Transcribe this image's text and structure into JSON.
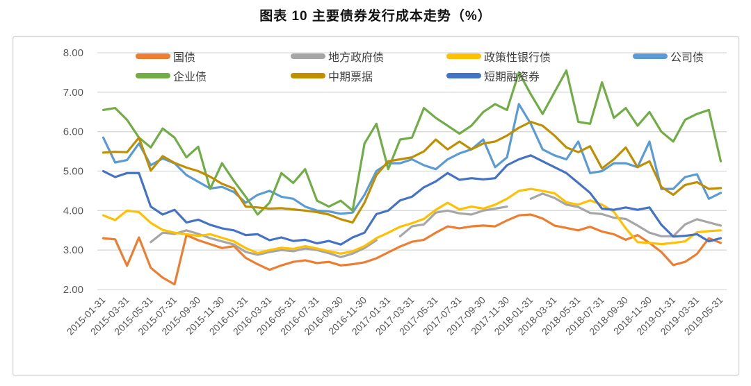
{
  "title": "图表 10 主要债券发行成本走势（%）",
  "chart_data": {
    "type": "line",
    "title": "图表 10 主要债券发行成本走势（%）",
    "ylim": [
      2.0,
      8.0
    ],
    "y_tick_labels": [
      "8.00",
      "7.00",
      "6.00",
      "5.00",
      "4.00",
      "3.00",
      "2.00"
    ],
    "grid": "horizontal-only",
    "legend_position": "top",
    "axis_label_color": "#595959",
    "gridline_color": "#d9d9d9",
    "x_note": "monthly points 2015-01 to 2019-05, tick labels every second month",
    "x_tick_labels": [
      "2015-01-31",
      "2015-03-31",
      "2015-05-31",
      "2015-07-31",
      "2015-09-30",
      "2015-11-30",
      "2016-01-31",
      "2016-03-31",
      "2016-05-31",
      "2016-07-31",
      "2016-09-30",
      "2016-11-30",
      "2017-01-31",
      "2017-03-31",
      "2017-05-31",
      "2017-07-31",
      "2017-09-30",
      "2017-11-30",
      "2018-01-31",
      "2018-03-31",
      "2018-05-31",
      "2018-07-31",
      "2018-09-30",
      "2018-11-30",
      "2019-01-31",
      "2019-03-31",
      "2019-05-31"
    ],
    "series": [
      {
        "id": "treasury-bond",
        "name": "国债",
        "color": "#ED7D31",
        "values": [
          3.3,
          3.27,
          2.6,
          3.32,
          2.55,
          2.3,
          2.13,
          3.38,
          3.25,
          3.15,
          3.05,
          3.1,
          2.8,
          2.64,
          2.5,
          2.61,
          2.7,
          2.74,
          2.67,
          2.7,
          2.61,
          2.64,
          2.69,
          2.79,
          2.94,
          3.09,
          3.21,
          3.26,
          3.44,
          3.6,
          3.55,
          3.6,
          3.62,
          3.6,
          3.75,
          3.88,
          3.9,
          3.8,
          3.62,
          3.56,
          3.5,
          3.59,
          3.47,
          3.4,
          3.26,
          3.38,
          3.18,
          2.95,
          2.62,
          2.7,
          2.9,
          3.3,
          3.18
        ]
      },
      {
        "id": "local-government-bond",
        "name": "地方政府债",
        "color": "#A6A6A6",
        "values": [
          null,
          null,
          null,
          null,
          3.2,
          3.44,
          3.41,
          3.5,
          3.41,
          3.3,
          3.22,
          3.14,
          2.95,
          2.88,
          2.95,
          3.0,
          2.97,
          3.04,
          3.0,
          2.92,
          2.82,
          2.91,
          3.05,
          3.25,
          null,
          3.35,
          3.6,
          3.65,
          3.95,
          4.0,
          3.93,
          3.9,
          4.0,
          4.05,
          4.1,
          null,
          4.3,
          4.43,
          4.32,
          4.15,
          4.09,
          3.94,
          3.91,
          3.82,
          3.79,
          3.62,
          3.44,
          3.35,
          3.35,
          3.65,
          3.78,
          3.7,
          3.62
        ]
      },
      {
        "id": "policy-bank-bond",
        "name": "政策性银行债",
        "color": "#FFC000",
        "values": [
          3.88,
          3.76,
          4.0,
          3.96,
          3.69,
          3.51,
          3.44,
          3.4,
          3.36,
          3.4,
          3.31,
          3.22,
          3.05,
          2.92,
          3.0,
          3.06,
          3.03,
          3.1,
          3.04,
          2.97,
          2.91,
          2.97,
          3.1,
          3.3,
          3.44,
          3.59,
          3.68,
          3.79,
          4.02,
          4.2,
          4.03,
          4.1,
          4.05,
          4.15,
          4.3,
          4.5,
          4.55,
          4.5,
          4.44,
          4.21,
          4.15,
          4.26,
          4.15,
          3.97,
          3.55,
          3.2,
          3.18,
          3.15,
          3.18,
          3.22,
          3.45,
          3.48,
          3.5
        ]
      },
      {
        "id": "corporate-bond",
        "name": "公司债",
        "color": "#5B9BD5",
        "values": [
          5.85,
          5.22,
          5.28,
          5.7,
          5.15,
          5.32,
          5.2,
          4.9,
          4.73,
          4.56,
          4.6,
          4.47,
          4.2,
          4.4,
          4.5,
          4.35,
          4.3,
          4.1,
          4.0,
          3.98,
          3.92,
          3.95,
          4.4,
          5.0,
          5.2,
          5.2,
          5.3,
          5.15,
          5.05,
          5.3,
          5.45,
          5.55,
          5.8,
          5.1,
          5.35,
          6.7,
          6.2,
          5.55,
          5.4,
          5.3,
          5.75,
          4.95,
          5.0,
          5.2,
          5.2,
          5.1,
          5.75,
          4.55,
          4.55,
          4.85,
          4.92,
          4.3,
          4.45
        ]
      },
      {
        "id": "enterprise-bond",
        "name": "企业债",
        "color": "#70AD47",
        "values": [
          6.55,
          6.6,
          6.3,
          5.85,
          5.6,
          6.08,
          5.85,
          5.35,
          5.62,
          4.55,
          5.2,
          4.75,
          4.35,
          3.9,
          4.2,
          4.95,
          4.7,
          5.05,
          4.25,
          4.1,
          4.25,
          4.0,
          5.7,
          6.2,
          5.05,
          5.8,
          5.85,
          6.6,
          6.35,
          6.15,
          5.95,
          6.15,
          6.5,
          6.7,
          6.55,
          7.5,
          6.95,
          6.45,
          7.0,
          7.55,
          6.25,
          6.2,
          7.25,
          6.35,
          6.6,
          6.15,
          6.5,
          6.0,
          5.75,
          6.3,
          6.45,
          6.55,
          5.25
        ]
      },
      {
        "id": "medium-term-note",
        "name": "中期票据",
        "color": "#BF8F00",
        "values": [
          5.47,
          5.49,
          5.48,
          5.85,
          5.01,
          5.38,
          5.21,
          5.09,
          5.0,
          4.86,
          4.68,
          4.56,
          4.1,
          4.08,
          4.05,
          4.06,
          4.03,
          4.0,
          3.96,
          3.9,
          3.78,
          3.7,
          4.2,
          4.9,
          5.25,
          5.3,
          5.35,
          5.5,
          5.8,
          5.55,
          5.75,
          5.55,
          5.7,
          5.75,
          5.9,
          6.1,
          6.25,
          6.15,
          5.9,
          5.6,
          5.48,
          5.63,
          5.07,
          5.3,
          5.6,
          5.1,
          5.25,
          4.6,
          4.4,
          4.65,
          4.72,
          4.55,
          4.57
        ]
      },
      {
        "id": "short-term-commercial-paper",
        "name": "短期融资券",
        "color": "#4472C4",
        "values": [
          5.0,
          4.85,
          4.95,
          4.95,
          4.1,
          3.9,
          4.02,
          3.7,
          3.77,
          3.64,
          3.55,
          3.5,
          3.38,
          3.4,
          3.25,
          3.32,
          3.23,
          3.26,
          3.17,
          3.23,
          3.14,
          3.32,
          3.44,
          3.91,
          4.0,
          4.26,
          4.35,
          4.59,
          4.74,
          4.95,
          4.78,
          4.82,
          4.79,
          4.82,
          5.15,
          5.3,
          5.4,
          5.25,
          5.1,
          4.95,
          4.7,
          4.45,
          4.05,
          4.02,
          4.08,
          4.02,
          4.08,
          3.64,
          3.34,
          3.36,
          3.4,
          3.22,
          3.3
        ]
      }
    ]
  }
}
